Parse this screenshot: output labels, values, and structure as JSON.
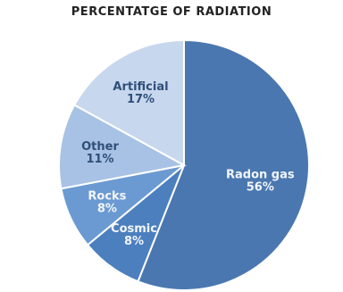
{
  "chart_data": {
    "type": "pie",
    "title": "PERCENTATGE OF RADIATION",
    "slices": [
      {
        "label": "Radon gas",
        "value": 56,
        "value_label": "56%",
        "color": "#4a77b0",
        "text_color": "#f2f6fb"
      },
      {
        "label": "Cosmic",
        "value": 8,
        "value_label": "8%",
        "color": "#4c7fbe",
        "text_color": "#f2f6fb"
      },
      {
        "label": "Rocks",
        "value": 8,
        "value_label": "8%",
        "color": "#6b9ad2",
        "text_color": "#f2f6fb"
      },
      {
        "label": "Other",
        "value": 11,
        "value_label": "11%",
        "color": "#a7c2e4",
        "text_color": "#2f4f7a"
      },
      {
        "label": "Artificial",
        "value": 17,
        "value_label": "17%",
        "color": "#c7d7ee",
        "text_color": "#2f4f7a"
      }
    ]
  }
}
